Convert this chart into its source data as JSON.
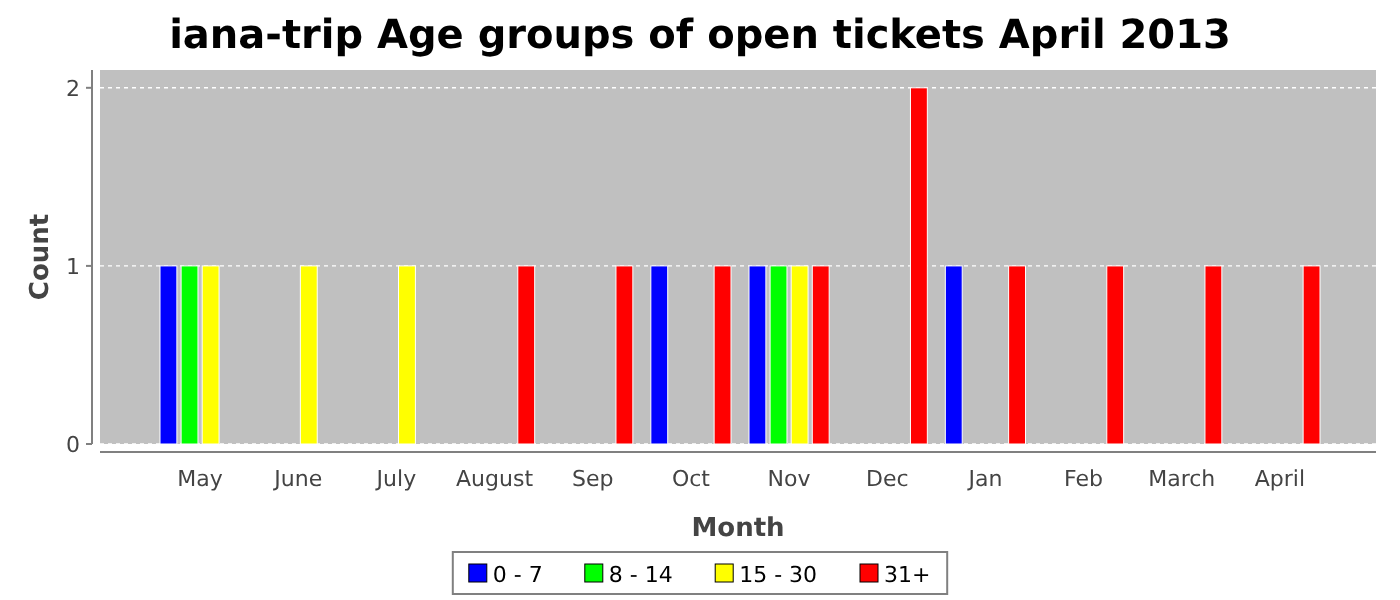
{
  "chart_data": {
    "type": "bar",
    "title": "iana-trip Age groups of open tickets April 2013",
    "xlabel": "Month",
    "ylabel": "Count",
    "categories": [
      "May",
      "June",
      "July",
      "August",
      "Sep",
      "Oct",
      "Nov",
      "Dec",
      "Jan",
      "Feb",
      "March",
      "April"
    ],
    "series": [
      {
        "name": "0 - 7",
        "color": "#0000ff",
        "values": [
          1,
          0,
          0,
          0,
          0,
          1,
          1,
          0,
          1,
          0,
          0,
          0
        ]
      },
      {
        "name": "8 - 14",
        "color": "#00ff00",
        "values": [
          1,
          0,
          0,
          0,
          0,
          0,
          1,
          0,
          0,
          0,
          0,
          0
        ]
      },
      {
        "name": "15 - 30",
        "color": "#ffff00",
        "values": [
          1,
          1,
          1,
          0,
          0,
          0,
          1,
          0,
          0,
          0,
          0,
          0
        ]
      },
      {
        "name": "31+",
        "color": "#ff0000",
        "values": [
          0,
          0,
          0,
          1,
          1,
          1,
          1,
          2,
          1,
          1,
          1,
          1
        ]
      }
    ],
    "ylim": [
      0,
      2.1
    ],
    "yticks": [
      0,
      1,
      2
    ],
    "grid": "y",
    "legend": "bottom"
  }
}
